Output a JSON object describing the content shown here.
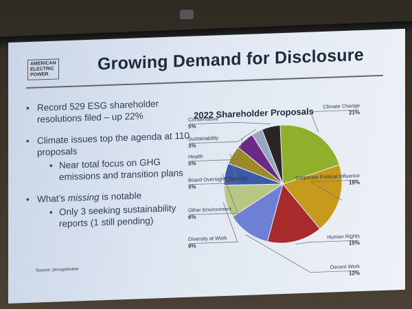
{
  "logo": {
    "line1": "AMERICAN",
    "line2": "ELECTRIC",
    "line3": "POWER"
  },
  "slide": {
    "title": "Growing Demand for Disclosure"
  },
  "bullets": {
    "b1": "Record 529 ESG shareholder resolutions filed – up 22%",
    "b2": "Climate issues top the agenda at 110 proposals",
    "b2_sub": "Near total focus on GHG emissions and transition plans",
    "b3_pre": "What’s ",
    "b3_em": "missing",
    "b3_post": " is notable",
    "b3_sub": "Only 3 seeking sustainability reports (1 still pending)"
  },
  "source": "Source: proxypreview",
  "chart_data": {
    "type": "pie",
    "title": "2022 Shareholder Proposals",
    "slices": [
      {
        "label": "Climate Change",
        "value": 21,
        "pct_label": "21%",
        "color": "#8fb02b"
      },
      {
        "label": "Corporate Political Influence",
        "value": 19,
        "pct_label": "19%",
        "color": "#c79a1c"
      },
      {
        "label": "Human Rights",
        "value": 15,
        "pct_label": "15%",
        "color": "#a82a2c"
      },
      {
        "label": "Decent Work",
        "value": 12,
        "pct_label": "12%",
        "color": "#6f7fd4"
      },
      {
        "label": "Diversity at Work",
        "value": 9,
        "pct_label": "9%",
        "color": "#b9c784"
      },
      {
        "label": "Other Environment",
        "value": 6,
        "pct_label": "6%",
        "color": "#3a5aa7"
      },
      {
        "label": "Board Oversight/ Diversity",
        "value": 5,
        "pct_label": "5%",
        "color": "#9c8a2a"
      },
      {
        "label": "Health",
        "value": 5,
        "pct_label": "5%",
        "color": "#6a2a86"
      },
      {
        "label": "Sustainability",
        "value": 3,
        "pct_label": "3%",
        "color": "#97a6c4"
      },
      {
        "label": "Conservative",
        "value": 5,
        "pct_label": "5%",
        "color": "#2a2422"
      }
    ]
  }
}
